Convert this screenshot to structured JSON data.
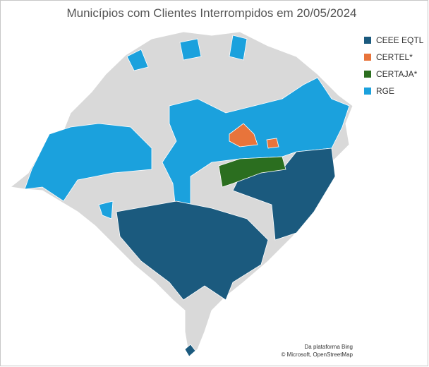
{
  "title": "Municípios com Clientes Interrompidos em 20/05/2024",
  "legend": [
    {
      "name": "CEEE EQTL",
      "color": "#1b5a7e"
    },
    {
      "name": "CERTEL*",
      "color": "#e8743b"
    },
    {
      "name": "CERTAJA*",
      "color": "#2b6e1f"
    },
    {
      "name": "RGE",
      "color": "#1ba1dd"
    }
  ],
  "attribution": [
    "Da plataforma Bing",
    "© Microsoft, OpenStreetMap"
  ]
}
